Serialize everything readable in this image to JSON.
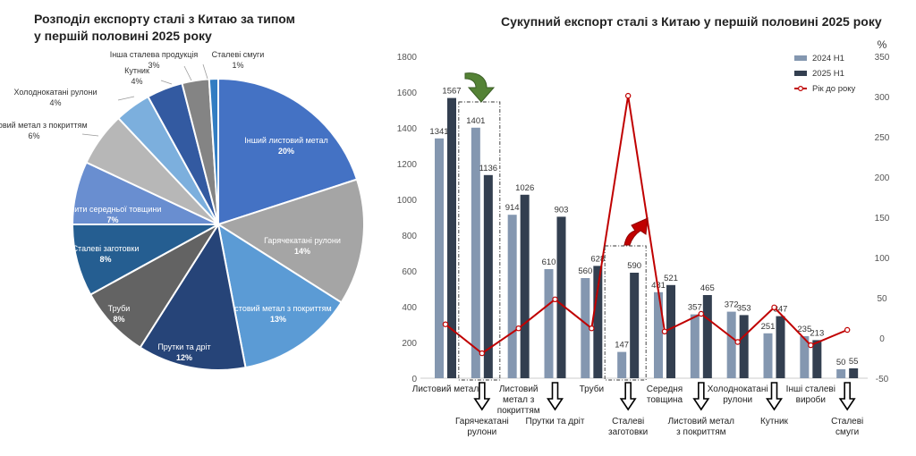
{
  "left_title": "Розподіл експорту сталі з Китаю за типом у першій половині 2025 року",
  "right_title": "Сукупний експорт сталі з Китаю у першій половині 2025 року",
  "chart_data": [
    {
      "type": "pie",
      "title": "Розподіл експорту сталі з Китаю за типом у першій половині 2025 року",
      "slices": [
        {
          "label": "Інший листовий метал",
          "pct_label": "20%",
          "value": 20,
          "color": "#4472c4"
        },
        {
          "label": "Гарячекатані рулони",
          "pct_label": "14%",
          "value": 14,
          "color": "#a5a5a5"
        },
        {
          "label": "Листовий метал з покриттям",
          "pct_label": "13%",
          "value": 13,
          "color": "#5b9bd5"
        },
        {
          "label": "Прутки та дріт",
          "pct_label": "12%",
          "value": 12,
          "color": "#264478"
        },
        {
          "label": "Труби",
          "pct_label": "8%",
          "value": 8,
          "color": "#636363"
        },
        {
          "label": "Сталеві заготовки",
          "pct_label": "8%",
          "value": 8,
          "color": "#255e91"
        },
        {
          "label": "Плити середньої товщини",
          "pct_label": "7%",
          "value": 7,
          "color": "#698ed0"
        },
        {
          "label": "Листовий метал з покриттям",
          "pct_label": "6%",
          "value": 6,
          "color": "#b7b7b7"
        },
        {
          "label": "Холоднокатані рулони",
          "pct_label": "4%",
          "value": 4,
          "color": "#7cafdd"
        },
        {
          "label": "Кутник",
          "pct_label": "4%",
          "value": 4,
          "color": "#335aa1"
        },
        {
          "label": "Інша сталева продукція",
          "pct_label": "3%",
          "value": 3,
          "color": "#848484"
        },
        {
          "label": "Сталеві смуги",
          "pct_label": "1%",
          "value": 1,
          "color": "#327dc2"
        }
      ]
    },
    {
      "type": "bar",
      "title": "Сукупний експорт сталі з Китаю у першій половині 2025 року",
      "categories": [
        "Листовий метал",
        "Гарячекатані рулони",
        "Листовий метал з покриттям",
        "Прутки та дріт",
        "Труби",
        "Сталеві заготовки",
        "Середня товщина",
        "Листовий метал з покриттям",
        "Холоднокатані рулони",
        "Кутник",
        "Інші сталеві вироби",
        "Сталеві смуги"
      ],
      "category_labels": [
        {
          "lines": [
            "Листовий метал"
          ],
          "row": "top"
        },
        {
          "lines": [
            "Гарячекатані",
            "рулони"
          ],
          "row": "bottom"
        },
        {
          "lines": [
            "Листовий",
            "метал з",
            "покриттям"
          ],
          "row": "top"
        },
        {
          "lines": [
            "Прутки та дріт"
          ],
          "row": "bottom"
        },
        {
          "lines": [
            "Труби"
          ],
          "row": "top"
        },
        {
          "lines": [
            "Сталеві",
            "заготовки"
          ],
          "row": "bottom"
        },
        {
          "lines": [
            "Середня",
            "товщина"
          ],
          "row": "top"
        },
        {
          "lines": [
            "Листовий метал",
            "з покриттям"
          ],
          "row": "bottom"
        },
        {
          "lines": [
            "Холоднокатані",
            "рулони"
          ],
          "row": "top"
        },
        {
          "lines": [
            "Кутник"
          ],
          "row": "bottom"
        },
        {
          "lines": [
            "Інші сталеві",
            "вироби"
          ],
          "row": "top"
        },
        {
          "lines": [
            "Сталеві",
            "смуги"
          ],
          "row": "bottom"
        }
      ],
      "series": [
        {
          "name": "2024 H1",
          "axis": "left",
          "color": "#8497b0",
          "values": [
            1341,
            1401,
            914,
            610,
            560,
            147,
            481,
            357,
            372,
            251,
            235,
            50
          ]
        },
        {
          "name": "2025 H1",
          "axis": "left",
          "color": "#333f50",
          "values": [
            1567,
            1136,
            1026,
            903,
            628,
            590,
            521,
            465,
            353,
            347,
            213,
            55
          ]
        },
        {
          "name": "Рік до року",
          "axis": "right",
          "type": "line",
          "color": "#c00000",
          "values": [
            17,
            -19,
            12,
            48,
            12,
            301,
            8,
            30,
            -5,
            38,
            -9,
            10
          ]
        }
      ],
      "y_left": {
        "min": 0,
        "max": 1800,
        "step": 200,
        "ticks": [
          "0",
          "200",
          "400",
          "600",
          "800",
          "1000",
          "1200",
          "1400",
          "1600",
          "1800"
        ]
      },
      "y_right": {
        "label": "%",
        "min": -50,
        "max": 350,
        "step": 50,
        "ticks": [
          "-50",
          "0",
          "50",
          "100",
          "150",
          "200",
          "250",
          "300",
          "350"
        ]
      },
      "legend": {
        "position": "top-right",
        "entries": [
          "2024 H1",
          "2025 H1",
          "Рік до року"
        ]
      }
    }
  ]
}
